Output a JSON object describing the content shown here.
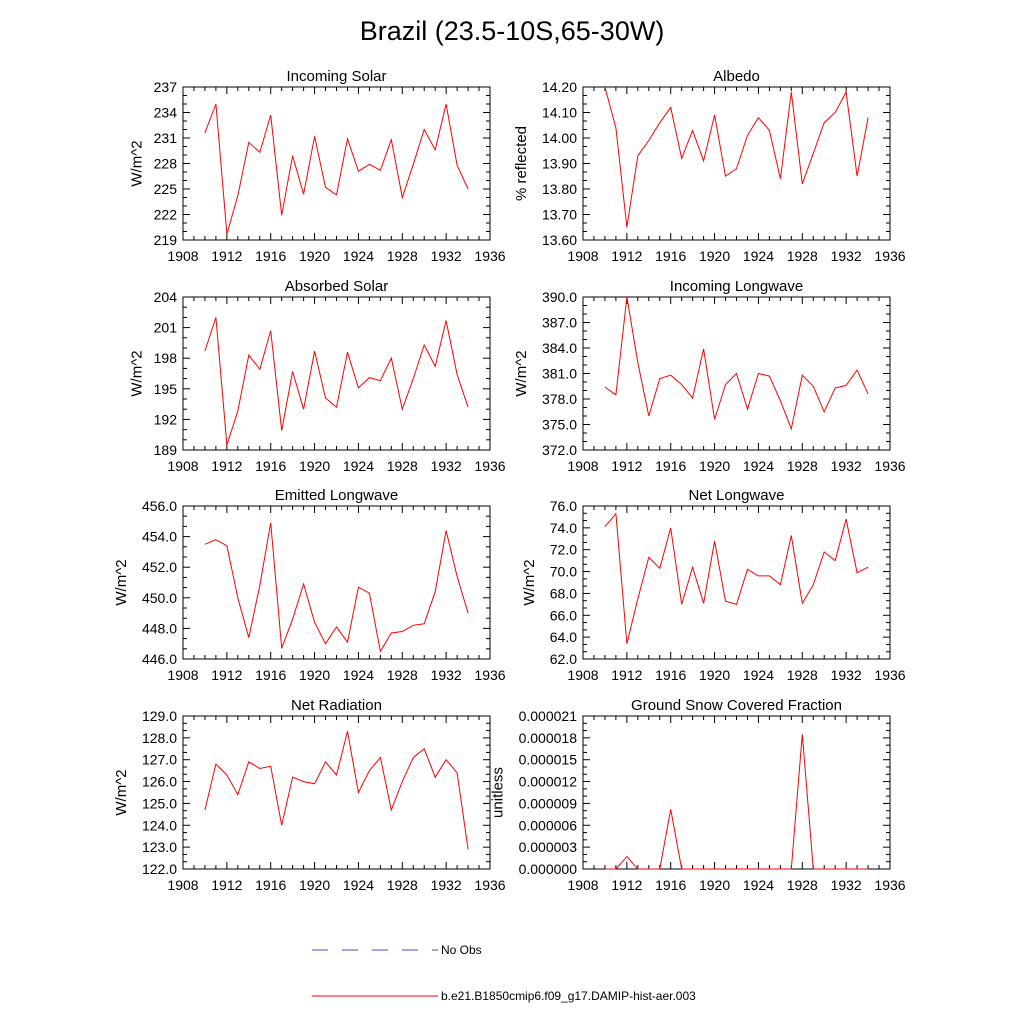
{
  "figure": {
    "title": "Brazil (23.5-10S,65-30W)",
    "legend": [
      {
        "label": "No Obs",
        "color": "#4a4ad0",
        "style": "dashed"
      },
      {
        "label": "b.e21.B1850cmip6.f09_g17.DAMIP-hist-aer.003",
        "color": "#ff0000",
        "style": "solid"
      }
    ]
  },
  "chart_data": [
    {
      "type": "line",
      "title": "Incoming Solar",
      "xlabel": "",
      "ylabel": "W/m^2",
      "xlim": [
        1908,
        1936
      ],
      "ylim": [
        219,
        237
      ],
      "x_ticks": [
        1908,
        1912,
        1916,
        1920,
        1924,
        1928,
        1932,
        1936
      ],
      "y_ticks": [
        "219",
        "222",
        "225",
        "228",
        "231",
        "234",
        "237"
      ],
      "x": [
        1910,
        1911,
        1912,
        1913,
        1914,
        1915,
        1916,
        1917,
        1918,
        1919,
        1920,
        1921,
        1922,
        1923,
        1924,
        1925,
        1926,
        1927,
        1928,
        1929,
        1930,
        1931,
        1932,
        1933,
        1934
      ],
      "series": [
        {
          "color": "#ff0000",
          "values": [
            231.6,
            235.0,
            219.7,
            224.2,
            230.5,
            229.3,
            233.7,
            221.9,
            228.9,
            224.4,
            231.2,
            225.2,
            224.3,
            230.9,
            227.1,
            227.9,
            227.2,
            230.8,
            224.0,
            227.9,
            232.0,
            229.6,
            235.0,
            227.8,
            225.0
          ]
        }
      ]
    },
    {
      "type": "line",
      "title": "Albedo",
      "xlabel": "",
      "ylabel": "% reflected",
      "xlim": [
        1908,
        1936
      ],
      "ylim": [
        13.6,
        14.2
      ],
      "x_ticks": [
        1908,
        1912,
        1916,
        1920,
        1924,
        1928,
        1932,
        1936
      ],
      "y_ticks": [
        "13.60",
        "13.70",
        "13.80",
        "13.90",
        "14.00",
        "14.10",
        "14.20"
      ],
      "x": [
        1910,
        1911,
        1912,
        1913,
        1914,
        1915,
        1916,
        1917,
        1918,
        1919,
        1920,
        1921,
        1922,
        1923,
        1924,
        1925,
        1926,
        1927,
        1928,
        1929,
        1930,
        1931,
        1932,
        1933,
        1934
      ],
      "series": [
        {
          "color": "#ff0000",
          "values": [
            14.2,
            14.04,
            13.65,
            13.93,
            13.99,
            14.06,
            14.12,
            13.92,
            14.03,
            13.91,
            14.09,
            13.85,
            13.88,
            14.01,
            14.08,
            14.03,
            13.84,
            14.18,
            13.82,
            13.94,
            14.06,
            14.1,
            14.18,
            13.85,
            14.08
          ]
        }
      ]
    },
    {
      "type": "line",
      "title": "Absorbed Solar",
      "xlabel": "",
      "ylabel": "W/m^2",
      "xlim": [
        1908,
        1936
      ],
      "ylim": [
        189,
        204
      ],
      "x_ticks": [
        1908,
        1912,
        1916,
        1920,
        1924,
        1928,
        1932,
        1936
      ],
      "y_ticks": [
        "189",
        "192",
        "195",
        "198",
        "201",
        "204"
      ],
      "x": [
        1910,
        1911,
        1912,
        1913,
        1914,
        1915,
        1916,
        1917,
        1918,
        1919,
        1920,
        1921,
        1922,
        1923,
        1924,
        1925,
        1926,
        1927,
        1928,
        1929,
        1930,
        1931,
        1932,
        1933,
        1934
      ],
      "series": [
        {
          "color": "#ff0000",
          "values": [
            198.7,
            202.0,
            189.5,
            192.8,
            198.3,
            196.9,
            200.7,
            190.9,
            196.7,
            193.0,
            198.7,
            194.1,
            193.2,
            198.6,
            195.1,
            196.1,
            195.8,
            198.0,
            193.0,
            196.0,
            199.3,
            197.2,
            201.7,
            196.4,
            193.2
          ]
        }
      ]
    },
    {
      "type": "line",
      "title": "Incoming Longwave",
      "xlabel": "",
      "ylabel": "W/m^2",
      "xlim": [
        1908,
        1936
      ],
      "ylim": [
        372,
        390
      ],
      "x_ticks": [
        1908,
        1912,
        1916,
        1920,
        1924,
        1928,
        1932,
        1936
      ],
      "y_ticks": [
        "372.0",
        "375.0",
        "378.0",
        "381.0",
        "384.0",
        "387.0",
        "390.0"
      ],
      "x": [
        1910,
        1911,
        1912,
        1913,
        1914,
        1915,
        1916,
        1917,
        1918,
        1919,
        1920,
        1921,
        1922,
        1923,
        1924,
        1925,
        1926,
        1927,
        1928,
        1929,
        1930,
        1931,
        1932,
        1933,
        1934
      ],
      "series": [
        {
          "color": "#ff0000",
          "values": [
            379.4,
            378.5,
            390.0,
            382.3,
            376.0,
            380.4,
            380.8,
            379.7,
            378.1,
            383.9,
            375.6,
            379.7,
            381.0,
            376.8,
            381.0,
            380.7,
            377.8,
            374.5,
            380.8,
            379.5,
            376.5,
            379.3,
            379.6,
            381.4,
            378.6
          ]
        }
      ]
    },
    {
      "type": "line",
      "title": "Emitted Longwave",
      "xlabel": "",
      "ylabel": "W/m^2",
      "xlim": [
        1908,
        1936
      ],
      "ylim": [
        446,
        456
      ],
      "x_ticks": [
        1908,
        1912,
        1916,
        1920,
        1924,
        1928,
        1932,
        1936
      ],
      "y_ticks": [
        "446.0",
        "448.0",
        "450.0",
        "452.0",
        "454.0",
        "456.0"
      ],
      "x": [
        1910,
        1911,
        1912,
        1913,
        1914,
        1915,
        1916,
        1917,
        1918,
        1919,
        1920,
        1921,
        1922,
        1923,
        1924,
        1925,
        1926,
        1927,
        1928,
        1929,
        1930,
        1931,
        1932,
        1933,
        1934
      ],
      "series": [
        {
          "color": "#ff0000",
          "values": [
            453.5,
            453.8,
            453.4,
            450.0,
            447.4,
            450.8,
            454.9,
            446.7,
            448.6,
            450.9,
            448.4,
            447.0,
            448.1,
            447.1,
            450.7,
            450.3,
            446.5,
            447.7,
            447.8,
            448.2,
            448.3,
            450.4,
            454.4,
            451.4,
            449.0
          ]
        }
      ]
    },
    {
      "type": "line",
      "title": "Net Longwave",
      "xlabel": "",
      "ylabel": "W/m^2",
      "xlim": [
        1908,
        1936
      ],
      "ylim": [
        62,
        76
      ],
      "x_ticks": [
        1908,
        1912,
        1916,
        1920,
        1924,
        1928,
        1932,
        1936
      ],
      "y_ticks": [
        "62.0",
        "64.0",
        "66.0",
        "68.0",
        "70.0",
        "72.0",
        "74.0",
        "76.0"
      ],
      "x": [
        1910,
        1911,
        1912,
        1913,
        1914,
        1915,
        1916,
        1917,
        1918,
        1919,
        1920,
        1921,
        1922,
        1923,
        1924,
        1925,
        1926,
        1927,
        1928,
        1929,
        1930,
        1931,
        1932,
        1933,
        1934
      ],
      "series": [
        {
          "color": "#ff0000",
          "values": [
            74.1,
            75.3,
            63.4,
            67.5,
            71.3,
            70.3,
            74.0,
            67.0,
            70.4,
            67.1,
            72.8,
            67.3,
            67.0,
            70.2,
            69.6,
            69.6,
            68.8,
            73.3,
            67.1,
            68.8,
            71.8,
            71.0,
            74.8,
            69.9,
            70.4
          ]
        }
      ]
    },
    {
      "type": "line",
      "title": "Net Radiation",
      "xlabel": "",
      "ylabel": "W/m^2",
      "xlim": [
        1908,
        1936
      ],
      "ylim": [
        122,
        129
      ],
      "x_ticks": [
        1908,
        1912,
        1916,
        1920,
        1924,
        1928,
        1932,
        1936
      ],
      "y_ticks": [
        "122.0",
        "123.0",
        "124.0",
        "125.0",
        "126.0",
        "127.0",
        "128.0",
        "129.0"
      ],
      "x": [
        1910,
        1911,
        1912,
        1913,
        1914,
        1915,
        1916,
        1917,
        1918,
        1919,
        1920,
        1921,
        1922,
        1923,
        1924,
        1925,
        1926,
        1927,
        1928,
        1929,
        1930,
        1931,
        1932,
        1933,
        1934
      ],
      "series": [
        {
          "color": "#ff0000",
          "values": [
            124.7,
            126.8,
            126.3,
            125.4,
            126.9,
            126.6,
            126.7,
            124.0,
            126.2,
            126.0,
            125.9,
            126.9,
            126.3,
            128.3,
            125.5,
            126.5,
            127.1,
            124.7,
            126.0,
            127.1,
            127.5,
            126.2,
            127.0,
            126.4,
            122.9
          ]
        }
      ]
    },
    {
      "type": "line",
      "title": "Ground Snow Covered Fraction",
      "xlabel": "",
      "ylabel": "unitless",
      "xlim": [
        1908,
        1936
      ],
      "ylim": [
        0,
        2.1e-05
      ],
      "x_ticks": [
        1908,
        1912,
        1916,
        1920,
        1924,
        1928,
        1932,
        1936
      ],
      "y_ticks": [
        "0.000000",
        "0.000003",
        "0.000006",
        "0.000009",
        "0.000012",
        "0.000015",
        "0.000018",
        "0.000021"
      ],
      "x": [
        1910,
        1911,
        1912,
        1913,
        1914,
        1915,
        1916,
        1917,
        1918,
        1919,
        1920,
        1921,
        1922,
        1923,
        1924,
        1925,
        1926,
        1927,
        1928,
        1929,
        1930,
        1931,
        1932,
        1933,
        1934
      ],
      "series": [
        {
          "color": "#ff0000",
          "values": [
            0,
            0,
            1.7e-06,
            0,
            0,
            0,
            8.2e-06,
            0,
            0,
            0,
            0,
            0,
            0,
            0,
            0,
            0,
            0,
            0,
            1.85e-05,
            0,
            0,
            0,
            0,
            0,
            0
          ]
        }
      ]
    }
  ]
}
